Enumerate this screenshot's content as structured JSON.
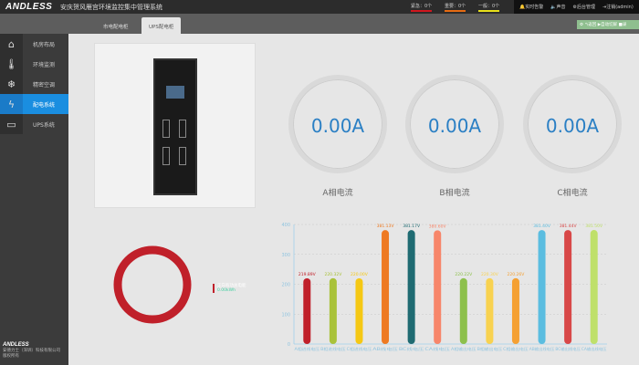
{
  "header": {
    "logo": "ANDLESS",
    "title": "安庆贺风雁宫环境监控集中管理系统",
    "alarms": [
      {
        "label": "紧急：0个",
        "color": "#d0161e"
      },
      {
        "label": "重要：0个",
        "color": "#e66b12"
      },
      {
        "label": "一般：0个",
        "color": "#e8e01a"
      }
    ],
    "actions": [
      "实时告警",
      "声音",
      "后台管理",
      "注销(admin)"
    ]
  },
  "tabs": [
    {
      "label": "市电配电柜",
      "active": false
    },
    {
      "label": "UPS配电柜",
      "active": true
    }
  ],
  "toolbar": [
    "返回",
    "自动切屏",
    "录"
  ],
  "sidebar": {
    "items": [
      {
        "label": "机房布局",
        "icon": "home-icon"
      },
      {
        "label": "环境监测",
        "icon": "thermometer-icon"
      },
      {
        "label": "精密空调",
        "icon": "snowflake-icon"
      },
      {
        "label": "配电系统",
        "icon": "lightning-icon",
        "active": true
      },
      {
        "label": "UPS系统",
        "icon": "battery-icon"
      }
    ],
    "footer_logo": "ANDLESS",
    "company": "安德力士（深圳）科技有限公司",
    "footer_sub": "版权所有"
  },
  "gauges": [
    {
      "value": "0.00A",
      "label": "A相电流"
    },
    {
      "value": "0.00A",
      "label": "B相电流"
    },
    {
      "value": "0.00A",
      "label": "C相电流"
    }
  ],
  "energy": {
    "legend": "正向有功总电能",
    "value": "0.00kWh",
    "color": "#c0202a"
  },
  "chart_data": {
    "type": "bar",
    "ylim": [
      0,
      400
    ],
    "yticks": [
      0,
      100,
      200,
      300,
      400
    ],
    "grid": true,
    "categories": [
      "A相进线电压",
      "B相进线电压",
      "C相进线电压",
      "AB线电压",
      "BC线电压",
      "CA线电压",
      "A相输出电压",
      "B相输出电压",
      "C相输出电压",
      "AB输出线电压",
      "BC输出线电压",
      "CA输出线电压"
    ],
    "values": [
      219.89,
      220.32,
      220.0,
      381.13,
      381.17,
      380.6,
      220.22,
      220.3,
      220.26,
      381.4,
      381.44,
      381.5
    ],
    "labels": [
      "219.89V",
      "220.32V",
      "220.00V",
      "381.13V",
      "381.17V",
      "380.60V",
      "220.22V",
      "220.30V",
      "220.26V",
      "381.40V",
      "381.44V",
      "381.50V"
    ],
    "colors": [
      "#c0202a",
      "#a9c23a",
      "#f5c814",
      "#ee7a22",
      "#1f6b72",
      "#f7866a",
      "#8dc04c",
      "#f8d250",
      "#f5a032",
      "#5bbde0",
      "#d84848",
      "#bfe06a"
    ]
  }
}
